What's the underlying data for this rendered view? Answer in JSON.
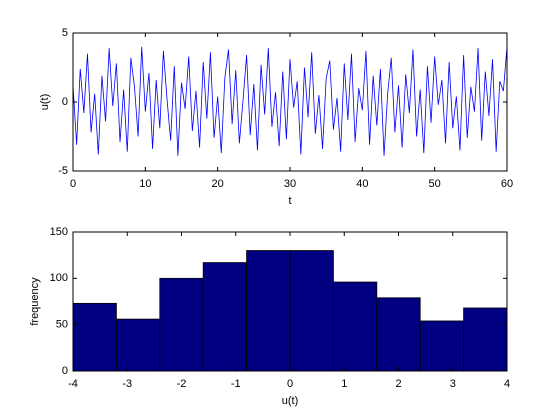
{
  "chart_data": [
    {
      "type": "line",
      "xlabel": "t",
      "ylabel": "u(t)",
      "x": [
        0,
        0.5,
        1,
        1.5,
        2,
        2.5,
        3,
        3.5,
        4,
        4.5,
        5,
        5.5,
        6,
        6.5,
        7,
        7.5,
        8,
        8.5,
        9,
        9.5,
        10,
        10.5,
        11,
        11.5,
        12,
        12.5,
        13,
        13.5,
        14,
        14.5,
        15,
        15.5,
        16,
        16.5,
        17,
        17.5,
        18,
        18.5,
        19,
        19.5,
        20,
        20.5,
        21,
        21.5,
        22,
        22.5,
        23,
        23.5,
        24,
        24.5,
        25,
        25.5,
        26,
        26.5,
        27,
        27.5,
        28,
        28.5,
        29,
        29.5,
        30,
        30.5,
        31,
        31.5,
        32,
        32.5,
        33,
        33.5,
        34,
        34.5,
        35,
        35.5,
        36,
        36.5,
        37,
        37.5,
        38,
        38.5,
        39,
        39.5,
        40,
        40.5,
        41,
        41.5,
        42,
        42.5,
        43,
        43.5,
        44,
        44.5,
        45,
        45.5,
        46,
        46.5,
        47,
        47.5,
        48,
        48.5,
        49,
        49.5,
        50,
        50.5,
        51,
        51.5,
        52,
        52.5,
        53,
        53.5,
        54,
        54.5,
        55,
        55.5,
        56,
        56.5,
        57,
        57.5,
        58,
        58.5,
        59,
        59.5,
        60
      ],
      "values": [
        1.2,
        -3.1,
        2.4,
        -0.8,
        3.5,
        -2.2,
        0.6,
        -3.8,
        1.9,
        -1.4,
        3.9,
        -0.3,
        2.8,
        -2.9,
        0.9,
        -3.6,
        3.2,
        1.1,
        -2.5,
        4.0,
        -0.7,
        2.1,
        -3.4,
        1.6,
        -1.9,
        3.7,
        0.2,
        -2.8,
        2.6,
        -3.9,
        1.4,
        -0.5,
        3.3,
        -2.1,
        0.8,
        -3.3,
        2.9,
        -1.2,
        3.6,
        -2.6,
        0.4,
        -3.7,
        1.8,
        3.8,
        -1.6,
        2.3,
        -3.0,
        0.1,
        3.4,
        -2.4,
        1.3,
        -3.5,
        2.7,
        -0.9,
        3.9,
        -1.8,
        0.7,
        -3.2,
        2.2,
        -2.7,
        3.1,
        -0.4,
        1.5,
        -3.8,
        2.5,
        -1.1,
        3.6,
        -2.3,
        0.5,
        -3.4,
        1.7,
        3.0,
        -2.0,
        0.3,
        -3.6,
        2.8,
        -1.3,
        3.5,
        -2.9,
        1.0,
        -0.6,
        3.7,
        -3.1,
        1.9,
        -1.7,
        2.4,
        -3.9,
        0.6,
        3.2,
        -2.2,
        1.2,
        -3.3,
        2.0,
        -0.8,
        3.8,
        -2.5,
        0.9,
        -3.7,
        2.6,
        -1.5,
        3.3,
        -0.2,
        1.6,
        -3.0,
        2.9,
        -1.9,
        0.4,
        -3.5,
        3.4,
        -2.6,
        1.1,
        -0.7,
        3.9,
        -2.8,
        2.2,
        -1.0,
        3.1,
        -3.6,
        1.5,
        0.8,
        4.0
      ],
      "color": "#0000ff",
      "xlim": [
        0,
        60
      ],
      "xticks": [
        0,
        10,
        20,
        30,
        40,
        50,
        60
      ],
      "ylim": [
        -5,
        5
      ],
      "yticks": [
        -5,
        0,
        5
      ]
    },
    {
      "type": "histogram",
      "xlabel": "u(t)",
      "ylabel": "frequency",
      "bins": [
        -4,
        -3.2,
        -2.4,
        -1.6,
        -0.8,
        0,
        0.8,
        1.6,
        2.4,
        3.2,
        4
      ],
      "values": [
        73,
        56,
        100,
        117,
        130,
        130,
        96,
        79,
        54,
        68
      ],
      "color": "#000080",
      "xlim": [
        -4,
        4
      ],
      "xticks": [
        -4,
        -3,
        -2,
        -1,
        0,
        1,
        2,
        3,
        4
      ],
      "ylim": [
        0,
        150
      ],
      "yticks": [
        0,
        50,
        100,
        150
      ]
    }
  ]
}
